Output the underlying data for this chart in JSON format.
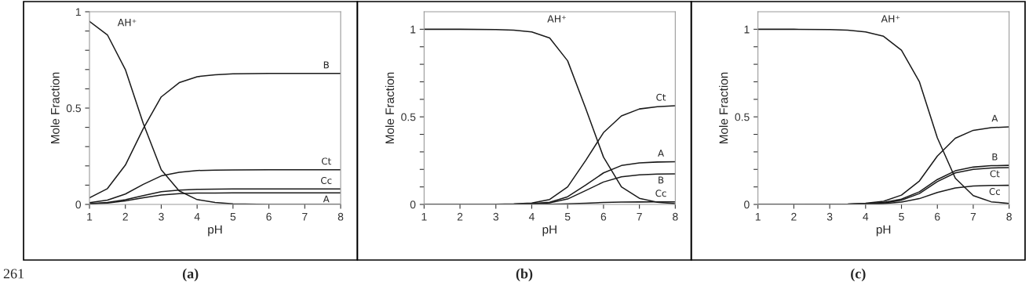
{
  "chart_data": [
    {
      "type": "line",
      "xlabel": "pH",
      "ylabel": "Mole Fraction",
      "annotations": [
        "261",
        "(a)"
      ],
      "x": [
        1,
        1.5,
        2,
        2.5,
        3,
        3.5,
        4,
        4.5,
        5,
        6,
        7,
        8
      ],
      "xlim": [
        1,
        8
      ],
      "xticks": [
        1,
        2,
        3,
        4,
        5,
        6,
        7,
        8
      ],
      "ylim": [
        0,
        1
      ],
      "yticks": [
        0,
        {
          "value": 0.1,
          "label": null
        },
        {
          "value": 0.2,
          "label": null
        },
        {
          "value": 0.3,
          "label": null
        },
        {
          "value": 0.4,
          "label": null
        },
        {
          "value": 0.5,
          "label": "0.5"
        },
        {
          "value": 0.6,
          "label": null
        },
        {
          "value": 0.7,
          "label": null
        },
        {
          "value": 0.8,
          "label": null
        },
        {
          "value": 0.9,
          "label": null
        },
        1
      ],
      "grid": false,
      "legend": false,
      "marker": "none",
      "line_style": "solid",
      "series": [
        {
          "name": "AH⁺",
          "color": "#1a1a1a",
          "values": [
            0.95,
            0.88,
            0.7,
            0.42,
            0.18,
            0.07,
            0.025,
            0.01,
            0.003,
            0,
            0,
            0
          ]
        },
        {
          "name": "B",
          "color": "#1a1a1a",
          "values": [
            0.034,
            0.082,
            0.204,
            0.394,
            0.558,
            0.632,
            0.663,
            0.673,
            0.678,
            0.68,
            0.68,
            0.68
          ]
        },
        {
          "name": "Ct",
          "color": "#1a1a1a",
          "values": [
            0.009,
            0.022,
            0.054,
            0.104,
            0.148,
            0.167,
            0.176,
            0.178,
            0.179,
            0.18,
            0.18,
            0.18
          ]
        },
        {
          "name": "Cc",
          "color": "#1a1a1a",
          "values": [
            0.004,
            0.01,
            0.024,
            0.046,
            0.066,
            0.074,
            0.078,
            0.079,
            0.08,
            0.08,
            0.08,
            0.08
          ]
        },
        {
          "name": "A",
          "color": "#1a1a1a",
          "values": [
            0.003,
            0.007,
            0.018,
            0.035,
            0.049,
            0.056,
            0.059,
            0.059,
            0.06,
            0.06,
            0.06,
            0.06
          ]
        }
      ]
    },
    {
      "type": "line",
      "xlabel": "pH",
      "ylabel": "Mole Fraction",
      "annotations": [
        "(b)"
      ],
      "x": [
        1,
        2,
        3,
        3.5,
        4,
        4.5,
        5,
        5.5,
        6,
        6.5,
        7,
        7.5,
        8
      ],
      "xlim": [
        1,
        8
      ],
      "xticks": [
        1,
        2,
        3,
        4,
        5,
        6,
        7,
        8
      ],
      "ylim": [
        0,
        1.1
      ],
      "yticks": [
        0,
        {
          "value": 0.1,
          "label": null
        },
        {
          "value": 0.2,
          "label": null
        },
        {
          "value": 0.3,
          "label": null
        },
        {
          "value": 0.4,
          "label": null
        },
        {
          "value": 0.5,
          "label": "0.5"
        },
        {
          "value": 0.6,
          "label": null
        },
        {
          "value": 0.7,
          "label": null
        },
        {
          "value": 0.8,
          "label": null
        },
        {
          "value": 0.9,
          "label": null
        },
        1
      ],
      "grid": false,
      "legend": false,
      "marker": "none",
      "line_style": "solid",
      "series": [
        {
          "name": "AH⁺",
          "color": "#1a1a1a",
          "values": [
            1,
            1,
            0.998,
            0.995,
            0.985,
            0.95,
            0.82,
            0.55,
            0.27,
            0.1,
            0.035,
            0.012,
            0.004
          ]
        },
        {
          "name": "Ct",
          "color": "#1a1a1a",
          "values": [
            0,
            0,
            0.001,
            0.003,
            0.008,
            0.028,
            0.1,
            0.25,
            0.41,
            0.505,
            0.545,
            0.558,
            0.563
          ]
        },
        {
          "name": "A",
          "color": "#1a1a1a",
          "values": [
            0,
            0,
            0,
            0.001,
            0.004,
            0.012,
            0.044,
            0.11,
            0.18,
            0.222,
            0.237,
            0.242,
            0.244
          ]
        },
        {
          "name": "B",
          "color": "#1a1a1a",
          "values": [
            0,
            0,
            0,
            0.001,
            0.003,
            0.009,
            0.031,
            0.079,
            0.128,
            0.158,
            0.169,
            0.173,
            0.174
          ]
        },
        {
          "name": "Cc",
          "color": "#1a1a1a",
          "values": [
            0,
            0,
            0,
            0,
            0,
            0.001,
            0.003,
            0.007,
            0.011,
            0.013,
            0.014,
            0.015,
            0.015
          ]
        }
      ]
    },
    {
      "type": "line",
      "xlabel": "pH",
      "ylabel": "Mole Fraction",
      "annotations": [
        "(c)"
      ],
      "x": [
        1,
        2,
        3,
        3.5,
        4,
        4.5,
        5,
        5.5,
        6,
        6.5,
        7,
        7.5,
        8
      ],
      "xlim": [
        1,
        8
      ],
      "xticks": [
        1,
        2,
        3,
        4,
        5,
        6,
        7,
        8
      ],
      "ylim": [
        0,
        1.1
      ],
      "yticks": [
        0,
        {
          "value": 0.1,
          "label": null
        },
        {
          "value": 0.2,
          "label": null
        },
        {
          "value": 0.3,
          "label": null
        },
        {
          "value": 0.4,
          "label": null
        },
        {
          "value": 0.5,
          "label": "0.5"
        },
        {
          "value": 0.6,
          "label": null
        },
        {
          "value": 0.7,
          "label": null
        },
        {
          "value": 0.8,
          "label": null
        },
        {
          "value": 0.9,
          "label": null
        },
        1
      ],
      "grid": false,
      "legend": false,
      "marker": "none",
      "line_style": "solid",
      "series": [
        {
          "name": "AH⁺",
          "color": "#1a1a1a",
          "values": [
            1,
            1,
            0.998,
            0.995,
            0.985,
            0.96,
            0.88,
            0.7,
            0.38,
            0.15,
            0.05,
            0.015,
            0.005
          ]
        },
        {
          "name": "A",
          "color": "#1a1a1a",
          "values": [
            0,
            0,
            0.001,
            0.002,
            0.007,
            0.018,
            0.053,
            0.134,
            0.276,
            0.378,
            0.423,
            0.438,
            0.443
          ]
        },
        {
          "name": "B",
          "color": "#1a1a1a",
          "values": [
            0,
            0,
            0,
            0.001,
            0.004,
            0.011,
            0.03,
            0.072,
            0.142,
            0.192,
            0.213,
            0.221,
            0.223
          ]
        },
        {
          "name": "Ct",
          "color": "#1a1a1a",
          "values": [
            0,
            0,
            0,
            0.001,
            0.003,
            0.008,
            0.024,
            0.062,
            0.13,
            0.18,
            0.2,
            0.208,
            0.21
          ]
        },
        {
          "name": "Cc",
          "color": "#1a1a1a",
          "values": [
            0,
            0,
            0,
            0.001,
            0.002,
            0.004,
            0.013,
            0.033,
            0.068,
            0.094,
            0.105,
            0.108,
            0.109
          ]
        }
      ]
    }
  ]
}
